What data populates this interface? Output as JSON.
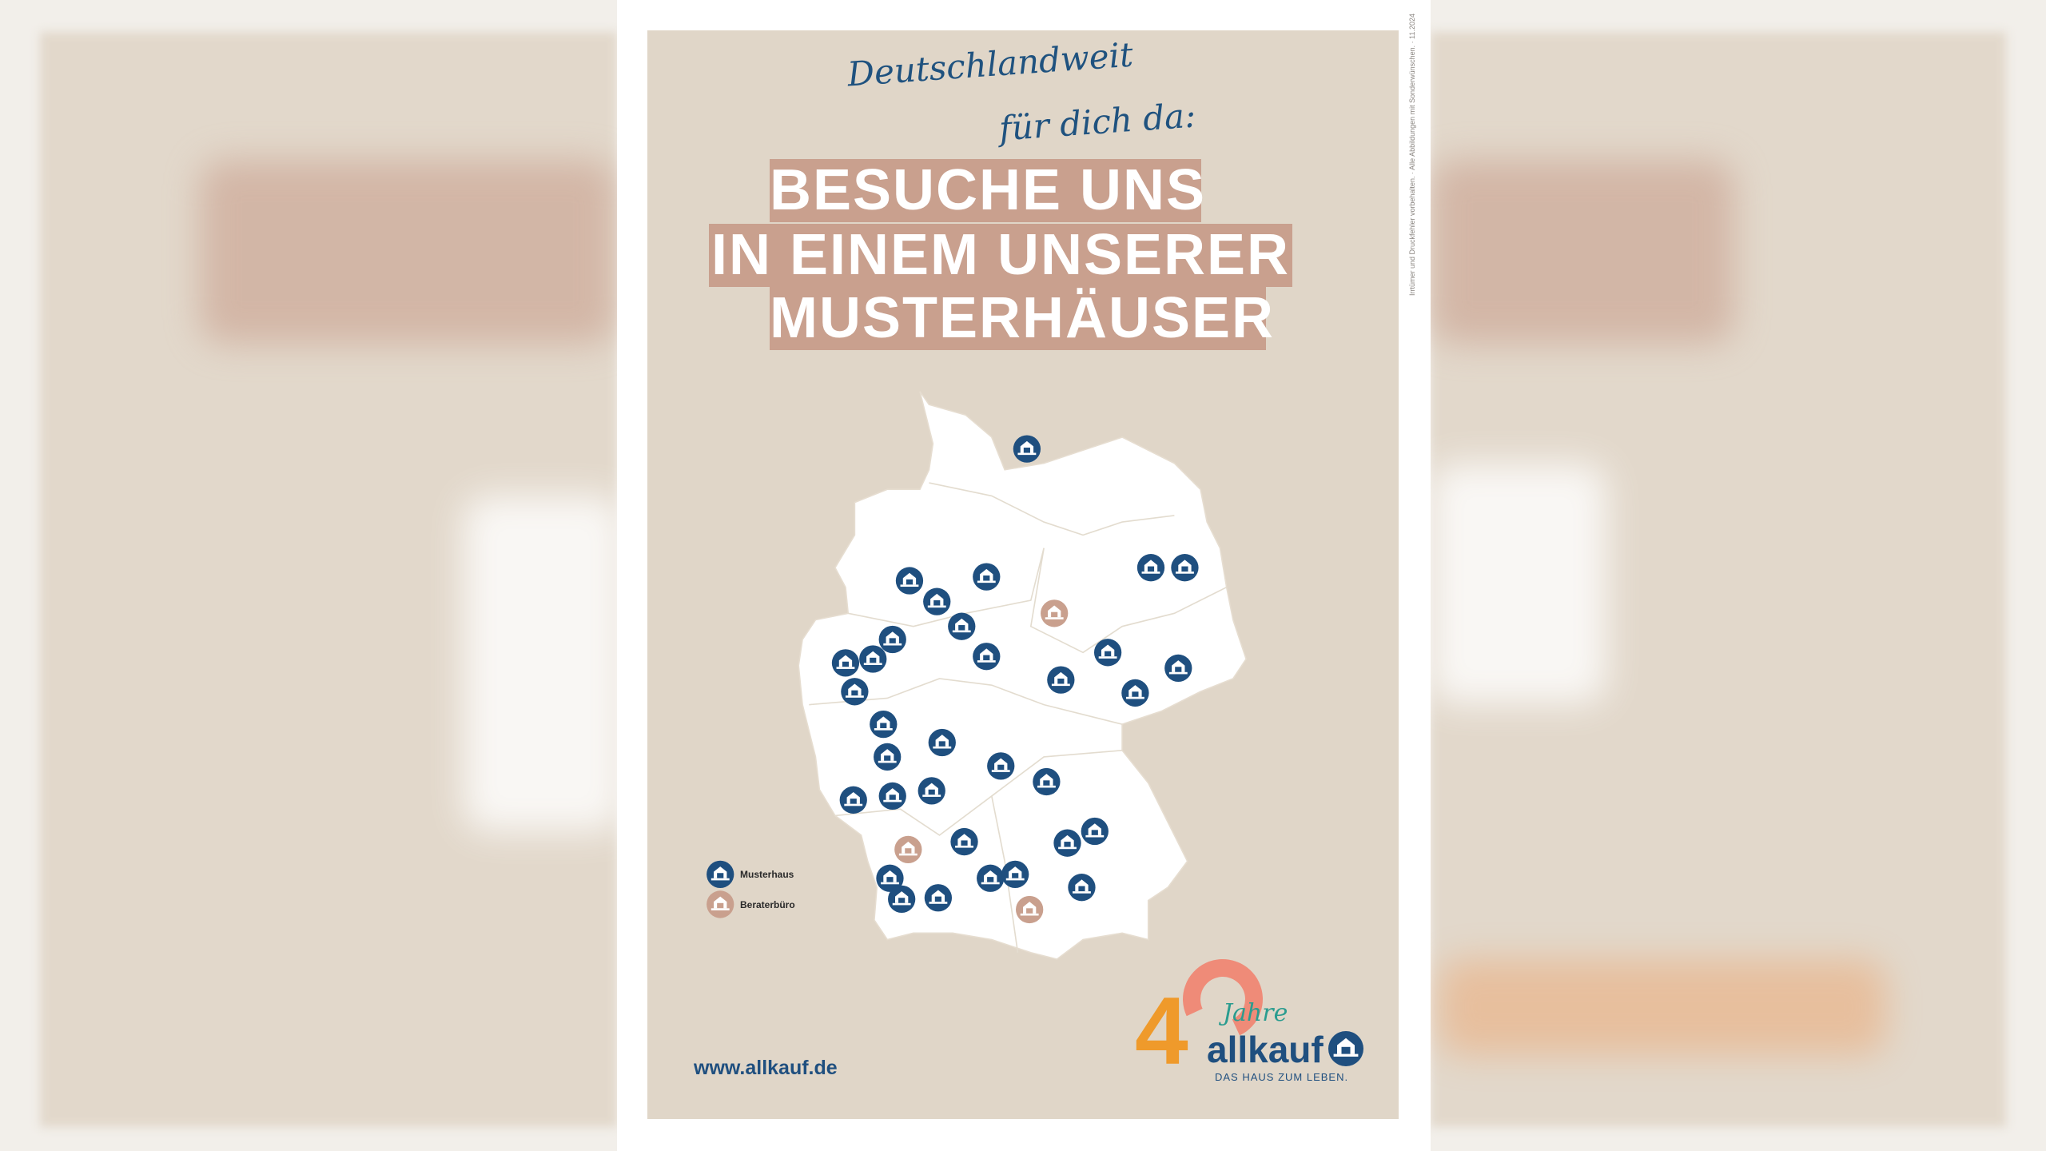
{
  "poster": {
    "tagline_line1": "Deutschlandweit",
    "tagline_line2": "für dich da:",
    "headline": [
      "BESUCHE UNS",
      "IN EINEM UNSERER",
      "MUSTERHÄUSER"
    ],
    "disclaimer": "Irrtümer und Druckfehler vorbehalten. · Alle Abbildungen mit Sonderwünschen. · 11.2024",
    "url": "www.allkauf.de"
  },
  "legend": [
    {
      "label": "Musterhaus",
      "color": "#1f4f7f",
      "icon": "house-marker-icon"
    },
    {
      "label": "Beraterbüro",
      "color": "#c9a08e",
      "icon": "house-marker-icon"
    }
  ],
  "map": {
    "country_fill": "#ffffff",
    "musterhaus_count": 33,
    "beraterbuero_count": 3
  },
  "logo": {
    "number": "4",
    "jahre": "Jahre",
    "brand": "allkauf",
    "slogan": "DAS HAUS ZUM LEBEN."
  },
  "colors": {
    "background": "#e0d6c8",
    "accent": "#c9a08e",
    "brand_blue": "#1f4f7f"
  }
}
